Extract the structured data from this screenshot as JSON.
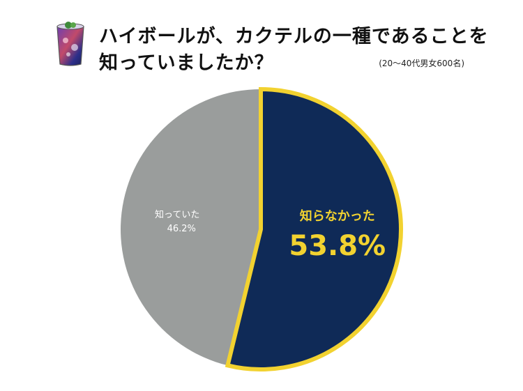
{
  "header": {
    "title_line1": "ハイボールが、カクテルの一種であることを",
    "title_line2": "知っていましたか？",
    "sample_note": "(20〜40代男女600名)",
    "icon": "highball-glass-icon"
  },
  "colors": {
    "known": "#9a9d9c",
    "not_known": "#0f2a57",
    "highlight": "#f2d230",
    "known_text": "#ffffff"
  },
  "chart_data": {
    "type": "pie",
    "title": "ハイボールが、カクテルの一種であることを知っていましたか？",
    "subtitle": "(20〜40代男女600名)",
    "start_angle_deg": 0,
    "direction": "clockwise",
    "slices": [
      {
        "name": "知らなかった",
        "value": 53.8,
        "label": "53.8%",
        "highlighted": true
      },
      {
        "name": "知っていた",
        "value": 46.2,
        "label": "46.2%",
        "highlighted": false
      }
    ]
  }
}
